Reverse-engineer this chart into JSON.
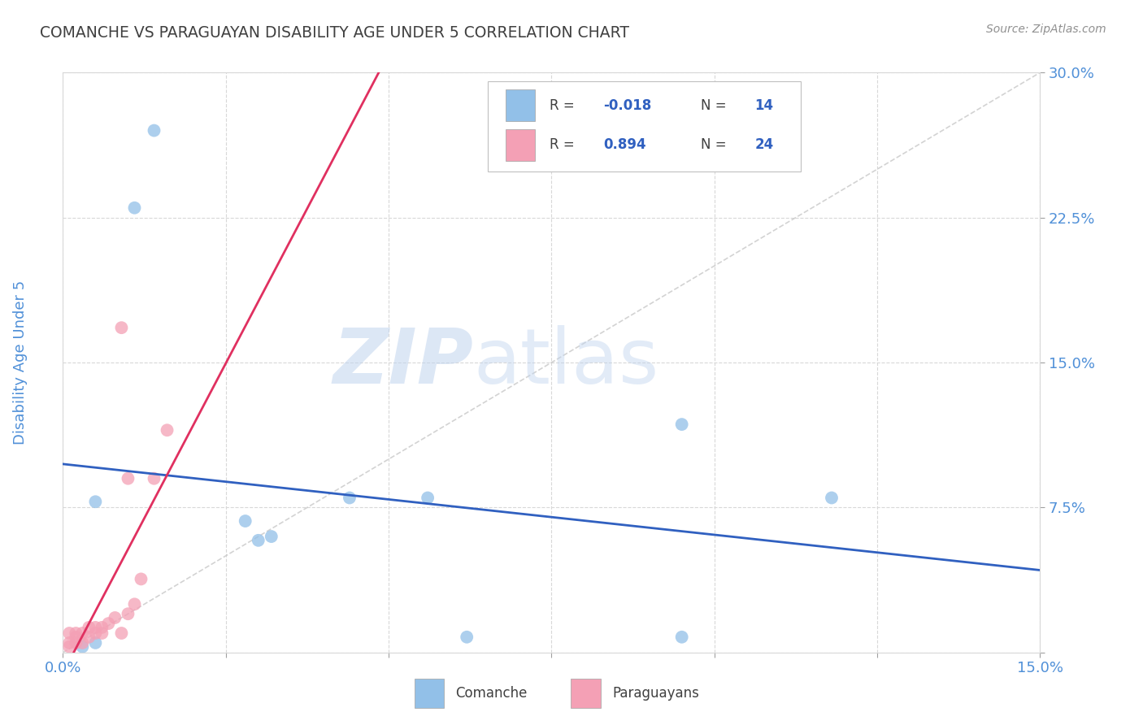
{
  "title": "COMANCHE VS PARAGUAYAN DISABILITY AGE UNDER 5 CORRELATION CHART",
  "source": "Source: ZipAtlas.com",
  "xlabel_comanche": "Comanche",
  "xlabel_paraguayan": "Paraguayans",
  "ylabel": "Disability Age Under 5",
  "xlim": [
    0.0,
    0.15
  ],
  "ylim": [
    0.0,
    0.3
  ],
  "xticks": [
    0.0,
    0.025,
    0.05,
    0.075,
    0.1,
    0.125,
    0.15
  ],
  "yticks": [
    0.0,
    0.075,
    0.15,
    0.225,
    0.3
  ],
  "xtick_labels_show": [
    "0.0%",
    "15.0%"
  ],
  "ytick_labels": [
    "",
    "7.5%",
    "15.0%",
    "22.5%",
    "30.0%"
  ],
  "comanche_color": "#92C0E8",
  "paraguayan_color": "#F4A0B5",
  "line_comanche_color": "#3060C0",
  "line_paraguayan_color": "#E03060",
  "diagonal_color": "#C8C8C8",
  "watermark_zip": "ZIP",
  "watermark_atlas": "atlas",
  "comanche_x": [
    0.014,
    0.011,
    0.003,
    0.005,
    0.005,
    0.028,
    0.032,
    0.03,
    0.044,
    0.056,
    0.062,
    0.095,
    0.095,
    0.118
  ],
  "comanche_y": [
    0.27,
    0.23,
    0.003,
    0.078,
    0.005,
    0.068,
    0.06,
    0.058,
    0.08,
    0.08,
    0.008,
    0.008,
    0.118,
    0.08
  ],
  "paraguayan_x": [
    0.001,
    0.001,
    0.001,
    0.002,
    0.002,
    0.002,
    0.003,
    0.003,
    0.004,
    0.004,
    0.005,
    0.005,
    0.006,
    0.006,
    0.007,
    0.008,
    0.009,
    0.01,
    0.011,
    0.012,
    0.014,
    0.016,
    0.009,
    0.01
  ],
  "paraguayan_y": [
    0.003,
    0.005,
    0.01,
    0.005,
    0.008,
    0.01,
    0.005,
    0.01,
    0.008,
    0.013,
    0.01,
    0.013,
    0.01,
    0.013,
    0.015,
    0.018,
    0.01,
    0.02,
    0.025,
    0.038,
    0.09,
    0.115,
    0.168,
    0.09
  ],
  "marker_size": 130,
  "background_color": "#FFFFFF",
  "plot_bg_color": "#FFFFFF",
  "title_color": "#404040",
  "axis_label_color": "#5090D8",
  "tick_label_color": "#5090D8",
  "grid_color": "#D8D8D8",
  "grid_linestyle": "--"
}
